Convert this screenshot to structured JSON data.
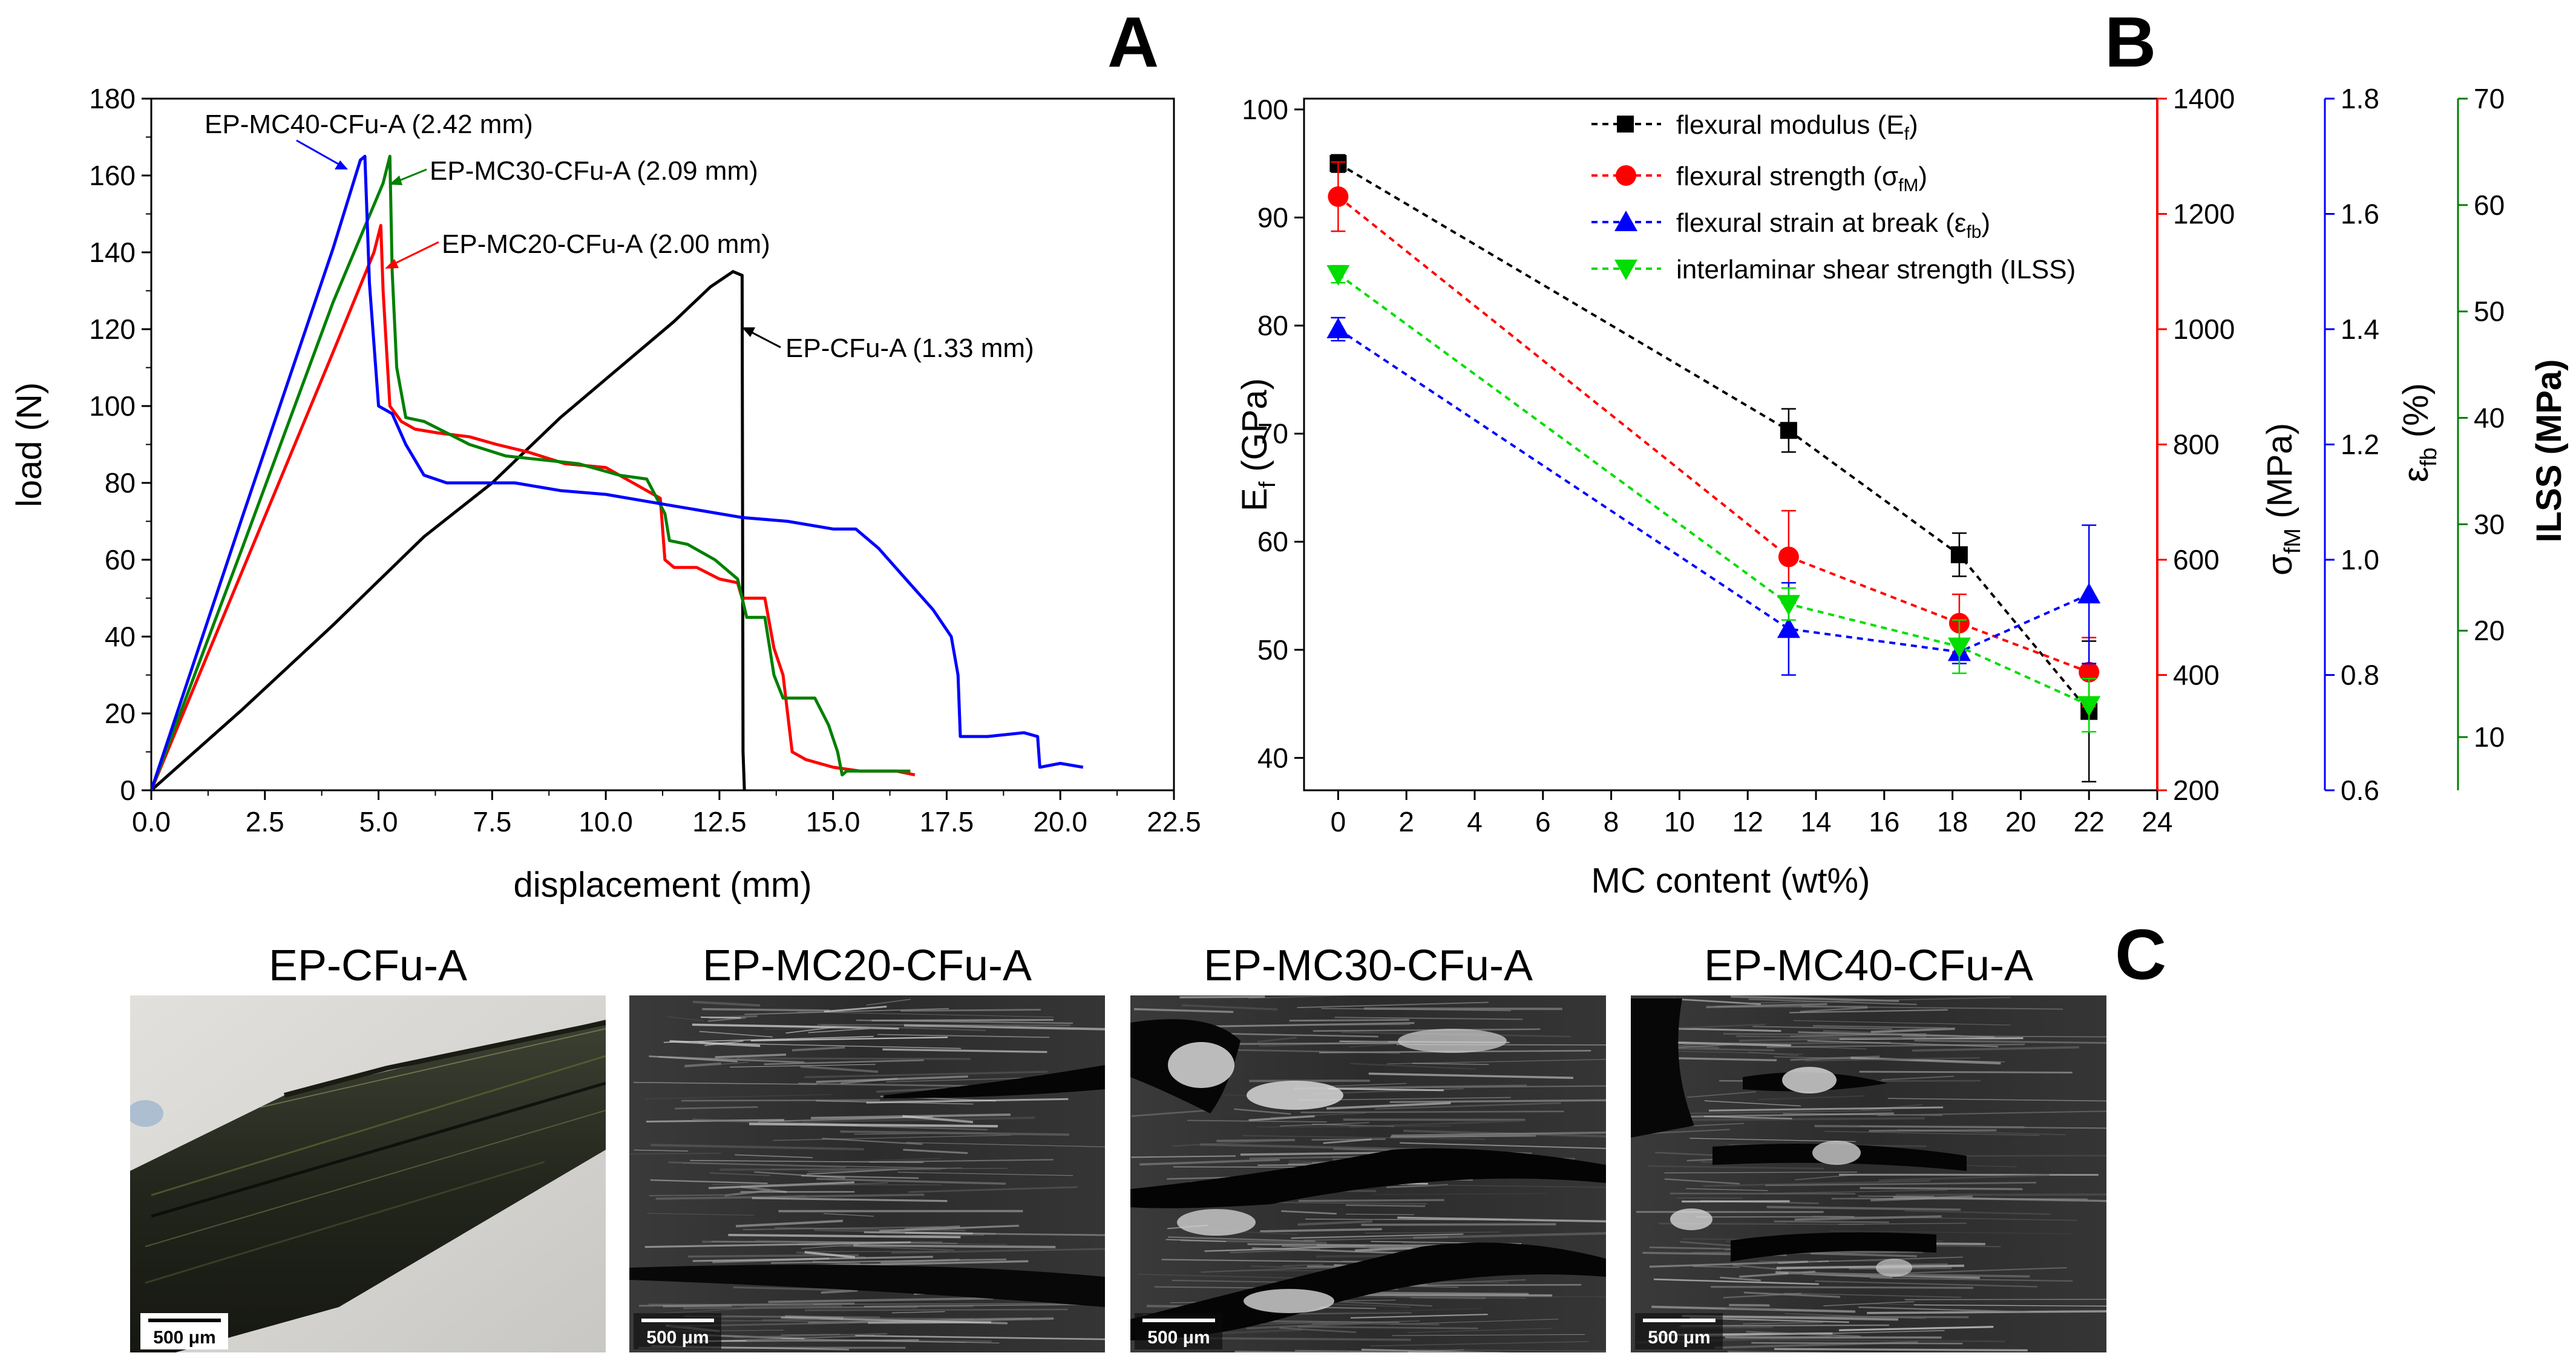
{
  "panel_labels": {
    "a": "A",
    "b": "B",
    "c": "C"
  },
  "chart_data": [
    {
      "type": "line",
      "panel": "A",
      "xlabel": "displacement (mm)",
      "ylabel": "load (N)",
      "xlim": [
        0,
        22.5
      ],
      "ylim": [
        0,
        180
      ],
      "xticks": [
        "0.0",
        "2.5",
        "5.0",
        "7.5",
        "10.0",
        "12.5",
        "15.0",
        "17.5",
        "20.0",
        "22.5"
      ],
      "yticks": [
        "0",
        "20",
        "40",
        "60",
        "80",
        "100",
        "120",
        "140",
        "160",
        "180"
      ],
      "grid": false,
      "series": [
        {
          "name": "EP-CFu-A (1.33 mm)",
          "color": "#000000",
          "x": [
            0,
            2,
            4,
            6,
            7.5,
            9,
            10.5,
            11.5,
            12.3,
            12.8,
            13.0,
            13.02,
            13.05
          ],
          "y": [
            0,
            21,
            43,
            66,
            80,
            97,
            112,
            122,
            131,
            135,
            134,
            10,
            0
          ]
        },
        {
          "name": "EP-MC20-CFu-A (2.00 mm)",
          "color": "#ff0000",
          "x": [
            0,
            2,
            4,
            4.9,
            5.05,
            5.1,
            5.15,
            5.25,
            5.5,
            5.8,
            6.3,
            7,
            7.6,
            8.3,
            9.1,
            10,
            10.6,
            11.2,
            11.3,
            11.5,
            12,
            12.5,
            12.9,
            13.0,
            13.5,
            13.7,
            13.9,
            14.1,
            14.4,
            15,
            15.6,
            16,
            16.4,
            16.8
          ],
          "y": [
            0,
            57,
            114,
            140,
            147,
            130,
            120,
            100,
            96,
            94,
            93,
            92,
            90,
            88,
            85,
            84,
            80,
            76,
            60,
            58,
            58,
            55,
            54,
            50,
            50,
            37,
            30,
            10,
            8,
            6,
            5,
            5,
            5,
            4
          ]
        },
        {
          "name": "EP-MC30-CFu-A (2.09 mm)",
          "color": "#008000",
          "x": [
            0,
            2,
            4,
            5.1,
            5.25,
            5.3,
            5.4,
            5.6,
            6,
            6.5,
            7,
            7.8,
            8.6,
            9.4,
            10.3,
            10.9,
            11.3,
            11.4,
            11.8,
            12.4,
            12.9,
            13.1,
            13.5,
            13.7,
            13.9,
            14.1,
            14.6,
            14.9,
            15.1,
            15.2,
            15.3,
            16,
            16.7
          ],
          "y": [
            0,
            63,
            127,
            158,
            165,
            135,
            110,
            97,
            96,
            93,
            90,
            87,
            86,
            85,
            82,
            81,
            72,
            65,
            64,
            60,
            55,
            45,
            45,
            30,
            24,
            24,
            24,
            17,
            10,
            4,
            5,
            5,
            5
          ]
        },
        {
          "name": "EP-MC40-CFu-A (2.42 mm)",
          "color": "#0000ff",
          "x": [
            0,
            2,
            4,
            4.6,
            4.7,
            4.8,
            5.0,
            5.3,
            5.6,
            6,
            6.5,
            7,
            8,
            9,
            10,
            11,
            12,
            13,
            14,
            15,
            15.5,
            16,
            16.6,
            17.2,
            17.6,
            17.75,
            17.8,
            17.85,
            18.4,
            19.2,
            19.5,
            19.55,
            20,
            20.5
          ],
          "y": [
            0,
            71,
            141,
            164,
            165,
            132,
            100,
            98,
            90,
            82,
            80,
            80,
            80,
            78,
            77,
            75,
            73,
            71,
            70,
            68,
            68,
            63,
            55,
            47,
            40,
            30,
            14,
            14,
            14,
            15,
            14,
            6,
            7,
            6
          ]
        }
      ],
      "annotations": [
        "EP-MC40-CFu-A (2.42 mm)",
        "EP-MC30-CFu-A (2.09 mm)",
        "EP-MC20-CFu-A (2.00 mm)",
        "EP-CFu-A (1.33 mm)"
      ]
    },
    {
      "type": "scatter",
      "panel": "B",
      "xlabel": "MC content (wt%)",
      "xlim": [
        -1,
        24
      ],
      "xticks": [
        "0",
        "2",
        "4",
        "6",
        "8",
        "10",
        "12",
        "14",
        "16",
        "18",
        "20",
        "22",
        "24"
      ],
      "x": [
        0,
        13.2,
        18.2,
        22
      ],
      "grid": false,
      "legend_position": "top-right",
      "series": [
        {
          "name": "flexural modulus (Ef)",
          "axis": "left",
          "ylabel": "Ef (GPa)",
          "ylim": [
            37,
            101
          ],
          "yticks": [
            "40",
            "50",
            "60",
            "70",
            "80",
            "90",
            "100"
          ],
          "color": "#000000",
          "marker": "square",
          "values": [
            95,
            70.3,
            58.8,
            44.3
          ],
          "errors": [
            0.8,
            2.0,
            2.0,
            6.5
          ]
        },
        {
          "name": "flexural strength (σfM)",
          "axis": "right1",
          "ylabel": "σfM (MPa)",
          "ylim": [
            200,
            1400
          ],
          "yticks": [
            "200",
            "400",
            "600",
            "800",
            "1000",
            "1200",
            "1400"
          ],
          "color": "#ff0000",
          "marker": "circle",
          "values": [
            1230,
            605,
            490,
            405
          ],
          "errors": [
            60,
            80,
            50,
            60
          ]
        },
        {
          "name": "flexural strain at break (εfb)",
          "axis": "right2",
          "ylabel": "εfb (%)",
          "ylim": [
            0.6,
            1.8
          ],
          "yticks": [
            "0.6",
            "0.8",
            "1.0",
            "1.2",
            "1.4",
            "1.6",
            "1.8"
          ],
          "color": "#0000ff",
          "marker": "triangle-up",
          "values": [
            1.4,
            0.88,
            0.84,
            0.94
          ],
          "errors": [
            0.02,
            0.08,
            0.02,
            0.12
          ]
        },
        {
          "name": "interlaminar shear strength (ILSS)",
          "axis": "right3",
          "ylabel": "ILSS (MPa)",
          "ylim": [
            5,
            70
          ],
          "yticks": [
            "10",
            "20",
            "30",
            "40",
            "50",
            "60",
            "70"
          ],
          "color": "#00dd00",
          "marker": "triangle-down",
          "values": [
            53.5,
            22.5,
            18.5,
            13
          ],
          "errors": [
            0.8,
            1.5,
            2.5,
            2.5
          ]
        }
      ]
    }
  ],
  "legend_b": [
    {
      "text": "flexural modulus (E",
      "sub": "f",
      "close": ")"
    },
    {
      "text": "flexural strength (σ",
      "sub": "fM",
      "close": ")"
    },
    {
      "text": "flexural strain at break (ε",
      "sub": "fb",
      "close": ")"
    },
    {
      "text": "interlaminar shear strength (ILSS)",
      "sub": "",
      "close": ""
    }
  ],
  "axis_titles_b": {
    "left": {
      "main": "E",
      "sub": "f",
      "rest": " (GPa)"
    },
    "right1": {
      "main": "σ",
      "sub": "fM",
      "rest": " (MPa)"
    },
    "right2": {
      "main": "ε",
      "sub": "fb",
      "rest": " (%)"
    },
    "right3": {
      "main": "ILSS (MPa)",
      "sub": "",
      "rest": ""
    }
  },
  "panel_c": {
    "images": [
      {
        "title": "EP-CFu-A",
        "scale": "500 μm"
      },
      {
        "title": "EP-MC20-CFu-A",
        "scale": "500 μm"
      },
      {
        "title": "EP-MC30-CFu-A",
        "scale": "500 μm"
      },
      {
        "title": "EP-MC40-CFu-A",
        "scale": "500 μm"
      }
    ]
  }
}
